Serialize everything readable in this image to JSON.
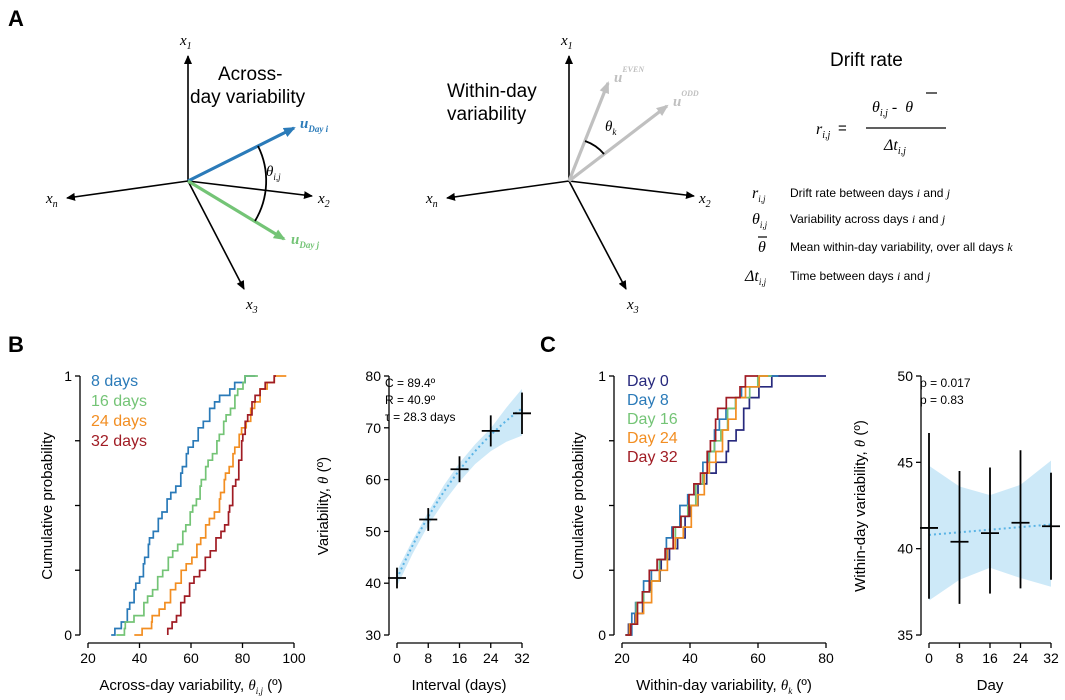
{
  "panel_letters": [
    "A",
    "B",
    "C"
  ],
  "panelA": {
    "across": {
      "title_line1": "Across-",
      "title_line2": "day variability",
      "axis_x1": "x",
      "axis_x1_sub": "1",
      "axis_x2": "x",
      "axis_x2_sub": "2",
      "axis_x3": "x",
      "axis_x3_sub": "3",
      "axis_xn": "x",
      "axis_xn_sub": "n",
      "vec_i": "u",
      "vec_i_sub": "Day i",
      "vec_j": "u",
      "vec_j_sub": "Day j",
      "angle": "θ",
      "angle_sub": "i,j",
      "color_i": "#2b7bb9",
      "color_j": "#74c476"
    },
    "within": {
      "title_line1": "Within-day",
      "title_line2": "variability",
      "axis_x1": "x",
      "axis_x1_sub": "1",
      "axis_x2": "x",
      "axis_x2_sub": "2",
      "axis_x3": "x",
      "axis_x3_sub": "3",
      "axis_xn": "x",
      "axis_xn_sub": "n",
      "vec_even": "u",
      "vec_even_sub": "k",
      "vec_even_sup": "EVEN",
      "vec_odd": "u",
      "vec_odd_sub": "k",
      "vec_odd_sup": "ODD",
      "angle": "θ",
      "angle_sub": "k",
      "color": "#c0c0c0"
    },
    "drift": {
      "title": "Drift rate",
      "lhs": "r",
      "lhs_sub": "i,j",
      "eq": "=",
      "num_theta": "θ",
      "num_sub": "i,j",
      "num_minus": "-",
      "num_theta_bar": "θ",
      "den_delta": "Δt",
      "den_sub": "i,j",
      "legend": [
        {
          "sym": "r",
          "sub": "i,j",
          "desc": "Drift rate between days ",
          "v1": "i",
          "and": " and ",
          "v2": "j"
        },
        {
          "sym": "θ",
          "sub": "i,j",
          "desc": "Variability across days ",
          "v1": "i",
          "and": " and ",
          "v2": "j"
        },
        {
          "sym": "θ",
          "sub": "",
          "desc": "Mean within-day variability, over all days ",
          "v1": "k",
          "and": "",
          "v2": ""
        },
        {
          "sym": "Δt",
          "sub": "i,j",
          "desc": "Time between days ",
          "v1": "i",
          "and": " and ",
          "v2": "j"
        }
      ]
    }
  },
  "chart_data": [
    {
      "id": "B-left",
      "type": "line",
      "subtype": "ecdf",
      "xlabel": "Across-day variability, ",
      "xlabel_sym": "θ",
      "xlabel_sub": "i,j",
      "xlabel_unit": " (º)",
      "ylabel": "Cumulative probability",
      "xlim": [
        20,
        100
      ],
      "ylim": [
        0,
        1
      ],
      "xticks": [
        "20",
        "40",
        "60",
        "80",
        "100"
      ],
      "yticks": [
        "0",
        "1"
      ],
      "series": [
        {
          "name": "8 days",
          "color": "#2a7ab8",
          "n": 40,
          "range": [
            29,
            85
          ],
          "pts": [
            [
              29,
              0
            ],
            [
              34,
              0.07
            ],
            [
              38,
              0.17
            ],
            [
              42,
              0.3
            ],
            [
              45,
              0.4
            ],
            [
              50,
              0.5
            ],
            [
              55,
              0.6
            ],
            [
              59,
              0.72
            ],
            [
              63,
              0.8
            ],
            [
              68,
              0.87
            ],
            [
              71,
              0.93
            ],
            [
              77,
              0.97
            ],
            [
              81,
              1.0
            ],
            [
              85,
              1.0
            ]
          ]
        },
        {
          "name": "16 days",
          "color": "#74c476",
          "n": 40,
          "range": [
            31,
            86
          ],
          "pts": [
            [
              31,
              0
            ],
            [
              36,
              0.06
            ],
            [
              41,
              0.1
            ],
            [
              46,
              0.2
            ],
            [
              52,
              0.3
            ],
            [
              57,
              0.4
            ],
            [
              61,
              0.5
            ],
            [
              64,
              0.6
            ],
            [
              68,
              0.7
            ],
            [
              72,
              0.8
            ],
            [
              76,
              0.9
            ],
            [
              79,
              0.97
            ],
            [
              82,
              1.0
            ],
            [
              86,
              1.0
            ]
          ]
        },
        {
          "name": "24 days",
          "color": "#f28e22",
          "n": 40,
          "range": [
            38,
            97
          ],
          "pts": [
            [
              38,
              0
            ],
            [
              44,
              0.05
            ],
            [
              48,
              0.1
            ],
            [
              54,
              0.2
            ],
            [
              60,
              0.3
            ],
            [
              65,
              0.4
            ],
            [
              70,
              0.5
            ],
            [
              73,
              0.6
            ],
            [
              76,
              0.7
            ],
            [
              80,
              0.8
            ],
            [
              83,
              0.87
            ],
            [
              87,
              0.94
            ],
            [
              92,
              1.0
            ],
            [
              97,
              1.0
            ]
          ]
        },
        {
          "name": "32 days",
          "color": "#a01c24",
          "n": 40,
          "range": [
            51,
            93
          ],
          "pts": [
            [
              51,
              0
            ],
            [
              55,
              0.1
            ],
            [
              60,
              0.2
            ],
            [
              66,
              0.3
            ],
            [
              72,
              0.4
            ],
            [
              75,
              0.5
            ],
            [
              77,
              0.6
            ],
            [
              79,
              0.7
            ],
            [
              80,
              0.8
            ],
            [
              84,
              0.9
            ],
            [
              88,
              0.98
            ],
            [
              93,
              1.0
            ]
          ]
        }
      ]
    },
    {
      "id": "B-right",
      "type": "scatter",
      "xlabel": "Interval (days)",
      "ylabel": "Variability, ",
      "ylabel_sym": "θ",
      "ylabel_unit": " (º)",
      "xlim": [
        0,
        32
      ],
      "ylim": [
        30,
        80
      ],
      "xticks": [
        "0",
        "8",
        "16",
        "24",
        "32"
      ],
      "yticks": [
        "30",
        "40",
        "50",
        "60",
        "70",
        "80"
      ],
      "annotations": [
        "C = 89.4º",
        "R = 40.9º",
        "τ = 28.3 days"
      ],
      "points": [
        {
          "x": 0,
          "y": 41.0,
          "err": 2.0
        },
        {
          "x": 8,
          "y": 52.3,
          "err": 2.2
        },
        {
          "x": 16,
          "y": 62.0,
          "err": 2.5
        },
        {
          "x": 24,
          "y": 69.4,
          "err": 3.0
        },
        {
          "x": 32,
          "y": 72.8,
          "err": 4.0
        }
      ],
      "fit": {
        "C": 89.4,
        "R": 40.9,
        "tau": 28.3,
        "color": "#5bb4e5",
        "band_color": "#cde9f8"
      },
      "band": {
        "x": [
          0,
          4,
          8,
          12,
          16,
          20,
          24,
          28,
          32
        ],
        "lo": [
          39.4,
          45.7,
          51.2,
          55.7,
          59.6,
          63.0,
          65.5,
          67.3,
          68.5
        ],
        "hi": [
          42.4,
          48.3,
          53.8,
          58.9,
          63.2,
          66.8,
          69.9,
          73.9,
          77.5
        ]
      }
    },
    {
      "id": "C-left",
      "type": "line",
      "subtype": "ecdf",
      "xlabel": "Within-day variability, ",
      "xlabel_sym": "θ",
      "xlabel_sub": "k",
      "xlabel_unit": " (º)",
      "ylabel": "Cumulative probability",
      "xlim": [
        20,
        80
      ],
      "ylim": [
        0,
        1
      ],
      "xticks": [
        "20",
        "40",
        "60",
        "80"
      ],
      "yticks": [
        "0",
        "1"
      ],
      "series": [
        {
          "name": "Day 0",
          "color": "#27297d",
          "n": 24,
          "range": [
            21,
            80
          ],
          "pts": [
            [
              21,
              0
            ],
            [
              24,
              0.1
            ],
            [
              28,
              0.2
            ],
            [
              33,
              0.3
            ],
            [
              37,
              0.4
            ],
            [
              40,
              0.5
            ],
            [
              44,
              0.6
            ],
            [
              48,
              0.68
            ],
            [
              52,
              0.75
            ],
            [
              55,
              0.83
            ],
            [
              57,
              0.9
            ],
            [
              60,
              0.96
            ],
            [
              63,
              1.0
            ],
            [
              80,
              1.0
            ]
          ]
        },
        {
          "name": "Day 8",
          "color": "#2a7ab8",
          "n": 24,
          "range": [
            21,
            66
          ],
          "pts": [
            [
              21,
              0
            ],
            [
              23,
              0.1
            ],
            [
              27,
              0.2
            ],
            [
              31,
              0.3
            ],
            [
              34,
              0.4
            ],
            [
              38,
              0.5
            ],
            [
              42,
              0.6
            ],
            [
              45,
              0.7
            ],
            [
              48,
              0.8
            ],
            [
              51,
              0.9
            ],
            [
              56,
              0.96
            ],
            [
              60,
              1.0
            ],
            [
              66,
              1.0
            ]
          ]
        },
        {
          "name": "Day 16",
          "color": "#74c476",
          "n": 24,
          "range": [
            21,
            64
          ],
          "pts": [
            [
              21,
              0
            ],
            [
              24,
              0.1
            ],
            [
              28,
              0.2
            ],
            [
              32,
              0.3
            ],
            [
              36,
              0.4
            ],
            [
              39,
              0.5
            ],
            [
              43,
              0.6
            ],
            [
              46,
              0.7
            ],
            [
              49,
              0.8
            ],
            [
              52,
              0.9
            ],
            [
              57,
              0.96
            ],
            [
              61,
              1.0
            ],
            [
              64,
              1.0
            ]
          ]
        },
        {
          "name": "Day 24",
          "color": "#f28e22",
          "n": 24,
          "range": [
            22,
            63
          ],
          "pts": [
            [
              22,
              0
            ],
            [
              25,
              0.1
            ],
            [
              29,
              0.2
            ],
            [
              33,
              0.3
            ],
            [
              37,
              0.4
            ],
            [
              41,
              0.5
            ],
            [
              44,
              0.6
            ],
            [
              47,
              0.7
            ],
            [
              50,
              0.8
            ],
            [
              53,
              0.88
            ],
            [
              56,
              0.95
            ],
            [
              60,
              1.0
            ],
            [
              63,
              1.0
            ]
          ]
        },
        {
          "name": "Day 32",
          "color": "#a01c24",
          "n": 24,
          "range": [
            21,
            60
          ],
          "pts": [
            [
              21,
              0
            ],
            [
              24,
              0.1
            ],
            [
              27,
              0.2
            ],
            [
              31,
              0.3
            ],
            [
              35,
              0.4
            ],
            [
              39,
              0.5
            ],
            [
              42,
              0.6
            ],
            [
              45,
              0.7
            ],
            [
              47,
              0.8
            ],
            [
              49,
              0.9
            ],
            [
              53,
              0.95
            ],
            [
              57,
              1.0
            ],
            [
              60,
              1.0
            ]
          ]
        }
      ]
    },
    {
      "id": "C-right",
      "type": "scatter",
      "xlabel": "Day",
      "ylabel": "Within-day variability, ",
      "ylabel_sym": "θ",
      "ylabel_unit": " (º)",
      "xlim": [
        0,
        32
      ],
      "ylim": [
        35,
        50
      ],
      "xticks": [
        "0",
        "8",
        "16",
        "24",
        "32"
      ],
      "yticks": [
        "35",
        "40",
        "45",
        "50"
      ],
      "annotations": [
        "ρ = 0.017",
        "p = 0.83"
      ],
      "points": [
        {
          "x": 0,
          "y": 41.2,
          "lo": 37.1,
          "hi": 46.7
        },
        {
          "x": 8,
          "y": 40.4,
          "lo": 36.8,
          "hi": 44.5
        },
        {
          "x": 16,
          "y": 40.9,
          "lo": 37.4,
          "hi": 44.7
        },
        {
          "x": 24,
          "y": 41.5,
          "lo": 37.7,
          "hi": 45.7
        },
        {
          "x": 32,
          "y": 41.3,
          "lo": 38.2,
          "hi": 44.4
        }
      ],
      "fit": {
        "y0": 40.8,
        "y1": 41.4,
        "color": "#5bb4e5",
        "band_color": "#cde9f8"
      },
      "band": {
        "x": [
          0,
          8,
          16,
          24,
          32
        ],
        "lo": [
          37.0,
          38.2,
          38.9,
          38.3,
          37.8
        ],
        "hi": [
          44.8,
          43.6,
          43.1,
          43.7,
          45.1
        ]
      }
    }
  ]
}
